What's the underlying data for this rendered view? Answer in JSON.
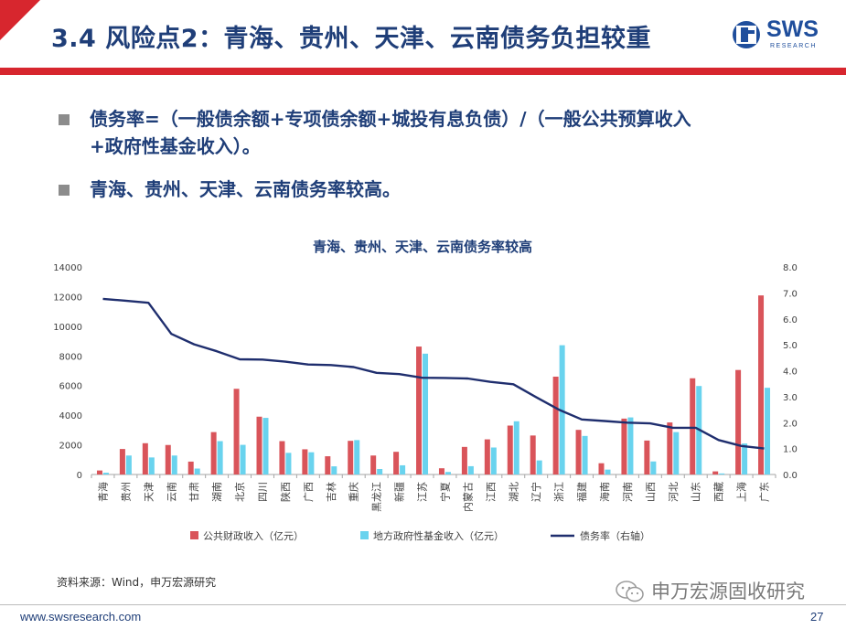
{
  "slide": {
    "title": "3.4 风险点2：青海、贵州、天津、云南债务负担较重",
    "bullets": [
      [
        "债务率=（一般债余额+专项债余额+城投有息负债）/（一般公共预算收入",
        "+政府性基金收入）。"
      ],
      [
        "青海、贵州、天津、云南债务率较高。"
      ]
    ],
    "logo": {
      "name": "SWS",
      "sub": "RESEARCH"
    },
    "source": "资料来源：Wind，申万宏源研究",
    "footer_url": "www.swsresearch.com",
    "page_number": "27",
    "watermark": "申万宏源固收研究"
  },
  "chart_data": {
    "type": "bar",
    "title": "青海、贵州、天津、云南债务率较高",
    "categories": [
      "青海",
      "贵州",
      "天津",
      "云南",
      "甘肃",
      "湖南",
      "北京",
      "四川",
      "陕西",
      "广西",
      "吉林",
      "重庆",
      "黑龙江",
      "新疆",
      "江苏",
      "宁夏",
      "内蒙古",
      "江西",
      "湖北",
      "辽宁",
      "浙江",
      "福建",
      "海南",
      "河南",
      "山西",
      "河北",
      "山东",
      "西藏",
      "上海",
      "广东"
    ],
    "series": [
      {
        "name": "公共财政收入（亿元）",
        "type": "bar",
        "axis": "left",
        "color": "#d9545a",
        "values": [
          270,
          1720,
          2110,
          1990,
          870,
          2860,
          5780,
          3900,
          2250,
          1700,
          1230,
          2270,
          1280,
          1530,
          8630,
          420,
          1860,
          2370,
          3300,
          2630,
          6600,
          3010,
          760,
          3770,
          2290,
          3510,
          6490,
          210,
          7050,
          12080
        ]
      },
      {
        "name": "地方政府性基金收入（亿元）",
        "type": "bar",
        "axis": "left",
        "color": "#69d3ee",
        "values": [
          120,
          1280,
          1150,
          1280,
          400,
          2250,
          2000,
          3820,
          1460,
          1500,
          550,
          2320,
          370,
          620,
          8150,
          170,
          560,
          1820,
          3590,
          950,
          8720,
          2600,
          330,
          3850,
          880,
          2860,
          5970,
          70,
          2090,
          5850
        ]
      },
      {
        "name": "债务率（右轴）",
        "type": "line",
        "axis": "right",
        "color": "#1f2e6e",
        "values": [
          6.77,
          6.7,
          6.62,
          5.42,
          5.02,
          4.75,
          4.44,
          4.43,
          4.35,
          4.24,
          4.22,
          4.14,
          3.92,
          3.87,
          3.73,
          3.72,
          3.7,
          3.57,
          3.48,
          2.98,
          2.5,
          2.12,
          2.06,
          2.0,
          1.97,
          1.8,
          1.8,
          1.33,
          1.1,
          1.0
        ]
      }
    ],
    "y_left": {
      "min": 0,
      "max": 14000,
      "step": 2000
    },
    "y_right": {
      "min": 0,
      "max": 8,
      "step": 1,
      "decimals": 1
    },
    "legend_position": "bottom"
  }
}
